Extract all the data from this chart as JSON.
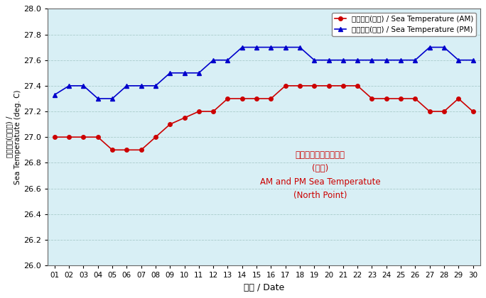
{
  "days": [
    1,
    2,
    3,
    4,
    5,
    6,
    7,
    8,
    9,
    10,
    11,
    12,
    13,
    14,
    15,
    16,
    17,
    18,
    19,
    20,
    21,
    22,
    23,
    24,
    25,
    26,
    27,
    28,
    29,
    30
  ],
  "am_temps": [
    27.0,
    27.0,
    27.0,
    27.0,
    26.9,
    26.9,
    26.9,
    27.0,
    27.1,
    27.15,
    27.2,
    27.2,
    27.3,
    27.3,
    27.3,
    27.3,
    27.4,
    27.4,
    27.4,
    27.4,
    27.4,
    27.4,
    27.3,
    27.3,
    27.3,
    27.3,
    27.2,
    27.2,
    27.3,
    27.2
  ],
  "pm_temps": [
    27.33,
    27.4,
    27.4,
    27.3,
    27.3,
    27.4,
    27.4,
    27.4,
    27.5,
    27.5,
    27.5,
    27.6,
    27.6,
    27.7,
    27.7,
    27.7,
    27.7,
    27.7,
    27.6,
    27.6,
    27.6,
    27.6,
    27.6,
    27.6,
    27.6,
    27.6,
    27.7,
    27.7,
    27.6,
    27.6
  ],
  "am_color": "#cc0000",
  "pm_color": "#0000cc",
  "bg_color": "#d8eff5",
  "outer_bg": "#ffffff",
  "legend_am": "海水温度(上午) / Sea Temperature (AM)",
  "legend_pm": "海水温度(下午) / Sea Temperature (PM)",
  "ylabel_chinese": "海水温度(攝氏度) /",
  "ylabel_english": "Sea Temperatute (deg. C)",
  "xlabel": "日期 / Date",
  "ann1": "上午及下午的海水温度",
  "ann2": "(北角)",
  "ann3": "AM and PM Sea Temperatute",
  "ann4": "(North Point)",
  "ylim_min": 26.0,
  "ylim_max": 28.0,
  "ytick_step": 0.2,
  "tick_labels": [
    "01",
    "02",
    "03",
    "04",
    "05",
    "06",
    "07",
    "08",
    "09",
    "10",
    "11",
    "12",
    "13",
    "14",
    "15",
    "16",
    "17",
    "18",
    "19",
    "20",
    "21",
    "22",
    "23",
    "24",
    "25",
    "26",
    "27",
    "28",
    "29",
    "30"
  ]
}
